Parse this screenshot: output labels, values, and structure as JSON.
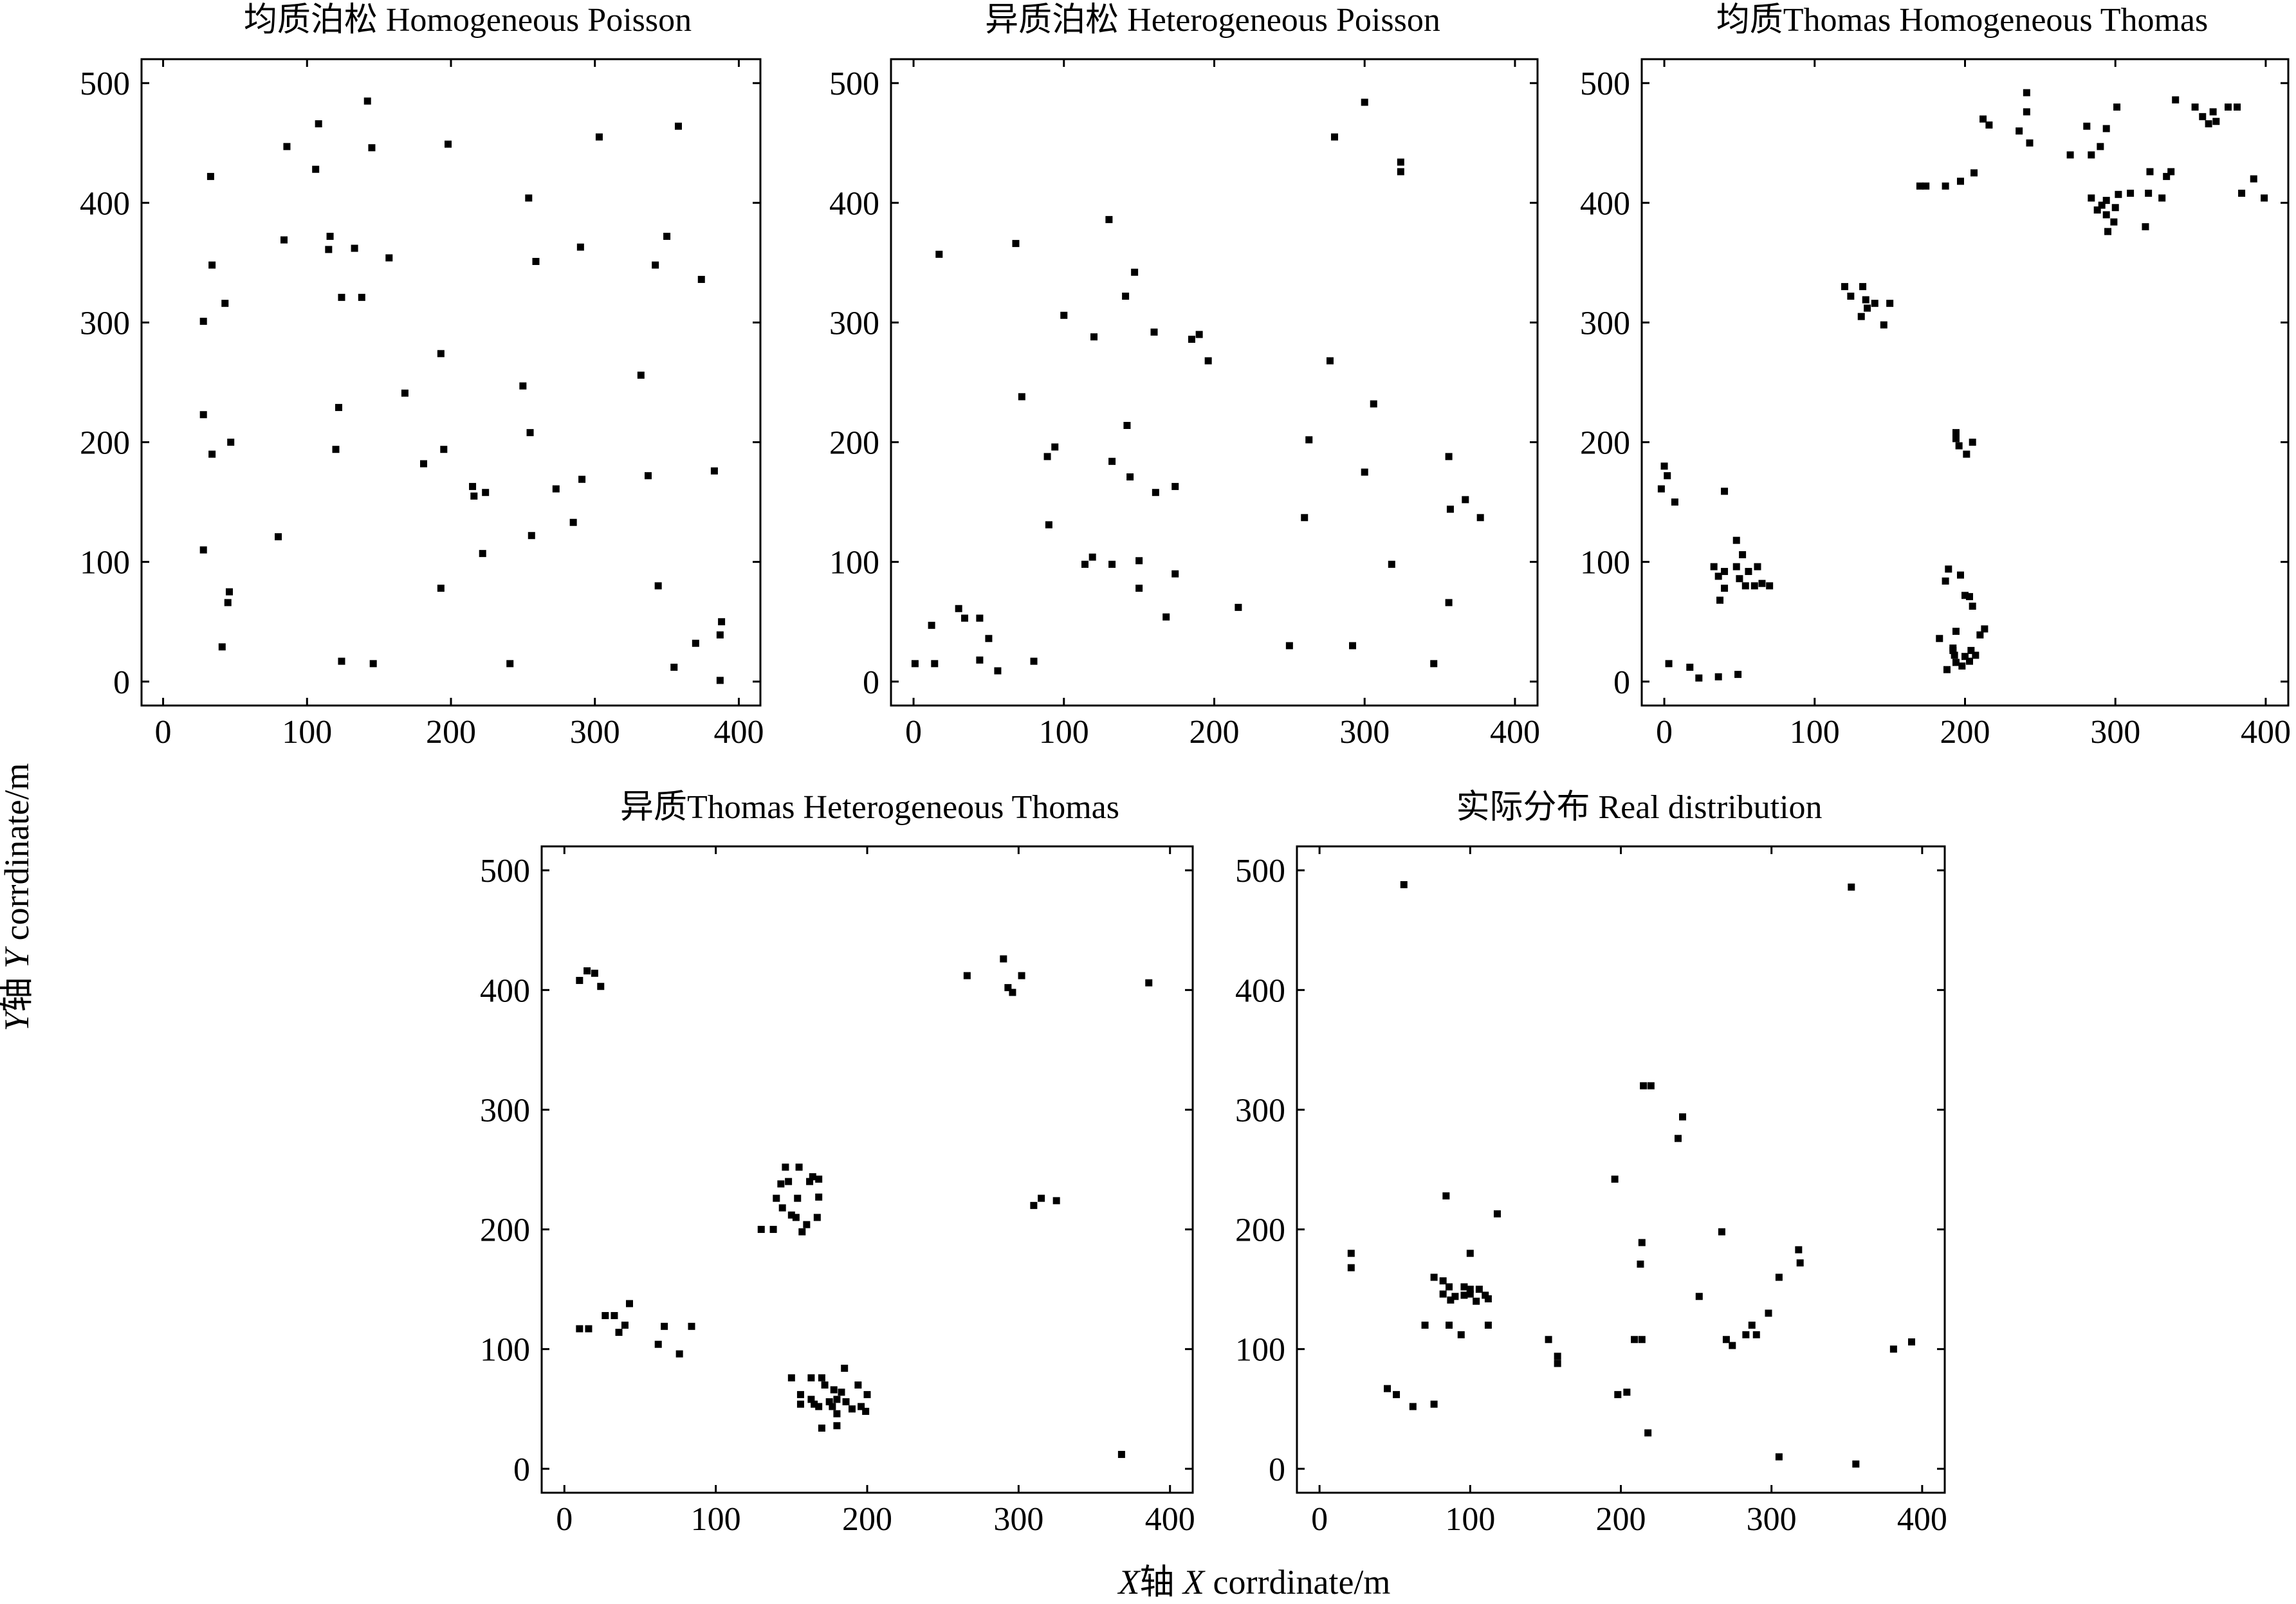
{
  "figure": {
    "ylabel_cn": "Y轴",
    "ylabel_en": "Y corrdinate/m",
    "xlabel_cn": "X轴",
    "xlabel_en": "X corrdinate/m"
  },
  "chart_data": [
    {
      "type": "scatter",
      "title": "均质泊松  Homogeneous Poisson",
      "xlim": [
        -15,
        415
      ],
      "ylim": [
        -20,
        520
      ],
      "xticks": [
        0,
        100,
        200,
        300,
        400
      ],
      "yticks": [
        0,
        100,
        200,
        300,
        400,
        500
      ],
      "points": [
        [
          142,
          485
        ],
        [
          108,
          466
        ],
        [
          358,
          464
        ],
        [
          303,
          455
        ],
        [
          198,
          449
        ],
        [
          86,
          447
        ],
        [
          145,
          446
        ],
        [
          106,
          428
        ],
        [
          33,
          422
        ],
        [
          254,
          404
        ],
        [
          116,
          372
        ],
        [
          350,
          372
        ],
        [
          84,
          369
        ],
        [
          115,
          361
        ],
        [
          133,
          362
        ],
        [
          290,
          363
        ],
        [
          157,
          354
        ],
        [
          259,
          351
        ],
        [
          34,
          348
        ],
        [
          342,
          348
        ],
        [
          374,
          336
        ],
        [
          43,
          316
        ],
        [
          124,
          321
        ],
        [
          138,
          321
        ],
        [
          28,
          301
        ],
        [
          193,
          274
        ],
        [
          332,
          256
        ],
        [
          250,
          247
        ],
        [
          168,
          241
        ],
        [
          122,
          229
        ],
        [
          28,
          223
        ],
        [
          255,
          208
        ],
        [
          47,
          200
        ],
        [
          120,
          194
        ],
        [
          195,
          194
        ],
        [
          34,
          190
        ],
        [
          181,
          182
        ],
        [
          383,
          176
        ],
        [
          337,
          172
        ],
        [
          291,
          169
        ],
        [
          215,
          163
        ],
        [
          224,
          158
        ],
        [
          216,
          155
        ],
        [
          273,
          161
        ],
        [
          285,
          133
        ],
        [
          256,
          122
        ],
        [
          80,
          121
        ],
        [
          28,
          110
        ],
        [
          222,
          107
        ],
        [
          46,
          75
        ],
        [
          45,
          66
        ],
        [
          344,
          80
        ],
        [
          193,
          78
        ],
        [
          388,
          50
        ],
        [
          387,
          39
        ],
        [
          370,
          32
        ],
        [
          41,
          29
        ],
        [
          124,
          17
        ],
        [
          146,
          15
        ],
        [
          241,
          15
        ],
        [
          355,
          12
        ],
        [
          387,
          1
        ]
      ]
    },
    {
      "type": "scatter",
      "title": "异质泊松  Heterogeneous Poisson",
      "xlim": [
        -15,
        415
      ],
      "ylim": [
        -20,
        520
      ],
      "xticks": [
        0,
        100,
        200,
        300,
        400
      ],
      "yticks": [
        0,
        100,
        200,
        300,
        400,
        500
      ],
      "points": [
        [
          300,
          484
        ],
        [
          280,
          455
        ],
        [
          324,
          434
        ],
        [
          324,
          426
        ],
        [
          130,
          386
        ],
        [
          68,
          366
        ],
        [
          17,
          357
        ],
        [
          147,
          342
        ],
        [
          100,
          306
        ],
        [
          141,
          322
        ],
        [
          185,
          286
        ],
        [
          190,
          290
        ],
        [
          160,
          292
        ],
        [
          120,
          288
        ],
        [
          196,
          268
        ],
        [
          277,
          268
        ],
        [
          72,
          238
        ],
        [
          306,
          232
        ],
        [
          142,
          214
        ],
        [
          94,
          196
        ],
        [
          89,
          188
        ],
        [
          263,
          202
        ],
        [
          132,
          184
        ],
        [
          356,
          188
        ],
        [
          144,
          171
        ],
        [
          174,
          163
        ],
        [
          161,
          158
        ],
        [
          300,
          175
        ],
        [
          367,
          152
        ],
        [
          357,
          144
        ],
        [
          377,
          137
        ],
        [
          90,
          131
        ],
        [
          260,
          137
        ],
        [
          119,
          104
        ],
        [
          132,
          98
        ],
        [
          150,
          101
        ],
        [
          114,
          98
        ],
        [
          318,
          98
        ],
        [
          174,
          90
        ],
        [
          150,
          78
        ],
        [
          216,
          62
        ],
        [
          356,
          66
        ],
        [
          30,
          61
        ],
        [
          44,
          53
        ],
        [
          34,
          53
        ],
        [
          168,
          54
        ],
        [
          12,
          47
        ],
        [
          50,
          36
        ],
        [
          250,
          30
        ],
        [
          292,
          30
        ],
        [
          44,
          18
        ],
        [
          80,
          17
        ],
        [
          1,
          15
        ],
        [
          14,
          15
        ],
        [
          56,
          9
        ],
        [
          346,
          15
        ]
      ]
    },
    {
      "type": "scatter",
      "title": "均质Thomas  Homogeneous Thomas",
      "xlim": [
        -15,
        415
      ],
      "ylim": [
        -20,
        520
      ],
      "xticks": [
        0,
        100,
        200,
        300,
        400
      ],
      "yticks": [
        0,
        100,
        200,
        300,
        400,
        500
      ],
      "points": [
        [
          241,
          492
        ],
        [
          241,
          476
        ],
        [
          340,
          486
        ],
        [
          353,
          480
        ],
        [
          365,
          476
        ],
        [
          358,
          472
        ],
        [
          367,
          468
        ],
        [
          362,
          466
        ],
        [
          375,
          480
        ],
        [
          381,
          480
        ],
        [
          301,
          480
        ],
        [
          212,
          470
        ],
        [
          216,
          465
        ],
        [
          236,
          460
        ],
        [
          243,
          450
        ],
        [
          281,
          464
        ],
        [
          294,
          462
        ],
        [
          290,
          447
        ],
        [
          284,
          440
        ],
        [
          270,
          440
        ],
        [
          323,
          426
        ],
        [
          334,
          422
        ],
        [
          337,
          426
        ],
        [
          206,
          425
        ],
        [
          197,
          418
        ],
        [
          187,
          414
        ],
        [
          170,
          414
        ],
        [
          174,
          414
        ],
        [
          294,
          402
        ],
        [
          284,
          404
        ],
        [
          302,
          407
        ],
        [
          310,
          408
        ],
        [
          288,
          394
        ],
        [
          294,
          390
        ],
        [
          300,
          396
        ],
        [
          291,
          398
        ],
        [
          299,
          384
        ],
        [
          295,
          376
        ],
        [
          320,
          380
        ],
        [
          322,
          408
        ],
        [
          331,
          404
        ],
        [
          392,
          420
        ],
        [
          384,
          408
        ],
        [
          399,
          404
        ],
        [
          120,
          330
        ],
        [
          132,
          330
        ],
        [
          124,
          322
        ],
        [
          134,
          319
        ],
        [
          140,
          316
        ],
        [
          135,
          312
        ],
        [
          131,
          305
        ],
        [
          146,
          298
        ],
        [
          150,
          316
        ],
        [
          194,
          208
        ],
        [
          194,
          203
        ],
        [
          196,
          197
        ],
        [
          205,
          200
        ],
        [
          201,
          190
        ],
        [
          0,
          180
        ],
        [
          2,
          172
        ],
        [
          -2,
          161
        ],
        [
          7,
          150
        ],
        [
          40,
          159
        ],
        [
          33,
          96
        ],
        [
          40,
          92
        ],
        [
          48,
          96
        ],
        [
          56,
          92
        ],
        [
          62,
          96
        ],
        [
          52,
          106
        ],
        [
          48,
          118
        ],
        [
          36,
          88
        ],
        [
          50,
          86
        ],
        [
          40,
          78
        ],
        [
          60,
          80
        ],
        [
          54,
          80
        ],
        [
          65,
          82
        ],
        [
          70,
          80
        ],
        [
          37,
          68
        ],
        [
          183,
          36
        ],
        [
          192,
          28
        ],
        [
          194,
          42
        ],
        [
          189,
          94
        ],
        [
          187,
          84
        ],
        [
          197,
          89
        ],
        [
          200,
          72
        ],
        [
          203,
          71
        ],
        [
          205,
          63
        ],
        [
          210,
          39
        ],
        [
          213,
          44
        ],
        [
          192,
          26
        ],
        [
          193,
          22
        ],
        [
          204,
          26
        ],
        [
          200,
          21
        ],
        [
          207,
          22
        ],
        [
          188,
          10
        ],
        [
          194,
          16
        ],
        [
          198,
          13
        ],
        [
          203,
          17
        ],
        [
          3,
          15
        ],
        [
          17,
          12
        ],
        [
          23,
          3
        ],
        [
          36,
          4
        ],
        [
          49,
          6
        ]
      ]
    },
    {
      "type": "scatter",
      "title": "异质Thomas  Heterogeneous Thomas",
      "xlim": [
        -15,
        415
      ],
      "ylim": [
        -20,
        520
      ],
      "xticks": [
        0,
        100,
        200,
        300,
        400
      ],
      "yticks": [
        0,
        100,
        200,
        300,
        400,
        500
      ],
      "points": [
        [
          15,
          416
        ],
        [
          20,
          414
        ],
        [
          10,
          408
        ],
        [
          24,
          403
        ],
        [
          266,
          412
        ],
        [
          290,
          426
        ],
        [
          302,
          412
        ],
        [
          293,
          402
        ],
        [
          296,
          398
        ],
        [
          386,
          406
        ],
        [
          146,
          252
        ],
        [
          155,
          252
        ],
        [
          148,
          240
        ],
        [
          143,
          238
        ],
        [
          164,
          244
        ],
        [
          168,
          242
        ],
        [
          162,
          240
        ],
        [
          140,
          226
        ],
        [
          154,
          226
        ],
        [
          168,
          227
        ],
        [
          144,
          218
        ],
        [
          150,
          212
        ],
        [
          153,
          210
        ],
        [
          160,
          204
        ],
        [
          167,
          210
        ],
        [
          130,
          200
        ],
        [
          138,
          200
        ],
        [
          157,
          198
        ],
        [
          310,
          220
        ],
        [
          315,
          226
        ],
        [
          325,
          224
        ],
        [
          27,
          128
        ],
        [
          43,
          138
        ],
        [
          33,
          128
        ],
        [
          40,
          120
        ],
        [
          66,
          119
        ],
        [
          84,
          119
        ],
        [
          10,
          117
        ],
        [
          16,
          117
        ],
        [
          36,
          114
        ],
        [
          62,
          104
        ],
        [
          76,
          96
        ],
        [
          150,
          76
        ],
        [
          163,
          76
        ],
        [
          170,
          76
        ],
        [
          185,
          84
        ],
        [
          172,
          70
        ],
        [
          178,
          66
        ],
        [
          183,
          64
        ],
        [
          194,
          70
        ],
        [
          200,
          62
        ],
        [
          156,
          62
        ],
        [
          163,
          58
        ],
        [
          175,
          56
        ],
        [
          180,
          58
        ],
        [
          186,
          56
        ],
        [
          165,
          54
        ],
        [
          156,
          54
        ],
        [
          168,
          52
        ],
        [
          177,
          52
        ],
        [
          190,
          50
        ],
        [
          196,
          52
        ],
        [
          199,
          48
        ],
        [
          180,
          46
        ],
        [
          170,
          34
        ],
        [
          180,
          36
        ],
        [
          368,
          12
        ]
      ]
    },
    {
      "type": "scatter",
      "title": "实际分布  Real distribution",
      "xlim": [
        -15,
        415
      ],
      "ylim": [
        -20,
        520
      ],
      "xticks": [
        0,
        100,
        200,
        300,
        400
      ],
      "yticks": [
        0,
        100,
        200,
        300,
        400,
        500
      ],
      "points": [
        [
          56,
          488
        ],
        [
          353,
          486
        ],
        [
          215,
          320
        ],
        [
          220,
          320
        ],
        [
          241,
          294
        ],
        [
          238,
          276
        ],
        [
          196,
          242
        ],
        [
          84,
          228
        ],
        [
          118,
          213
        ],
        [
          214,
          189
        ],
        [
          267,
          198
        ],
        [
          21,
          180
        ],
        [
          21,
          168
        ],
        [
          213,
          171
        ],
        [
          318,
          183
        ],
        [
          319,
          172
        ],
        [
          305,
          160
        ],
        [
          76,
          160
        ],
        [
          82,
          157
        ],
        [
          86,
          152
        ],
        [
          96,
          152
        ],
        [
          100,
          150
        ],
        [
          82,
          146
        ],
        [
          90,
          144
        ],
        [
          106,
          150
        ],
        [
          96,
          145
        ],
        [
          100,
          146
        ],
        [
          110,
          145
        ],
        [
          112,
          142
        ],
        [
          87,
          141
        ],
        [
          104,
          140
        ],
        [
          100,
          180
        ],
        [
          252,
          144
        ],
        [
          298,
          130
        ],
        [
          287,
          120
        ],
        [
          290,
          112
        ],
        [
          283,
          112
        ],
        [
          270,
          108
        ],
        [
          274,
          103
        ],
        [
          152,
          108
        ],
        [
          209,
          108
        ],
        [
          214,
          108
        ],
        [
          158,
          94
        ],
        [
          158,
          88
        ],
        [
          70,
          120
        ],
        [
          86,
          120
        ],
        [
          112,
          120
        ],
        [
          94,
          112
        ],
        [
          381,
          100
        ],
        [
          393,
          106
        ],
        [
          45,
          67
        ],
        [
          51,
          62
        ],
        [
          62,
          52
        ],
        [
          76,
          54
        ],
        [
          198,
          62
        ],
        [
          204,
          64
        ],
        [
          218,
          30
        ],
        [
          305,
          10
        ],
        [
          356,
          4
        ]
      ]
    }
  ]
}
